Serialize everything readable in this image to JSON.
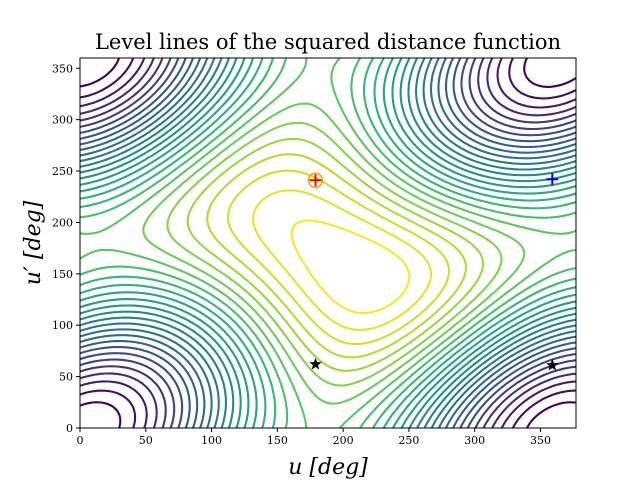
{
  "chart_data": {
    "type": "contour",
    "title": "Level lines of the squared distance function",
    "xlabel": "u [deg]",
    "ylabel": "u′ [deg]",
    "xlim": [
      0,
      377
    ],
    "ylim": [
      0,
      360
    ],
    "xticks": [
      0,
      50,
      100,
      150,
      200,
      250,
      300,
      350
    ],
    "yticks": [
      0,
      50,
      100,
      150,
      200,
      250,
      300,
      350
    ],
    "colormap": "viridis",
    "level_count": 28,
    "grid": false,
    "markers": [
      {
        "kind": "maximum",
        "symbol": "+",
        "color": "#ff0000",
        "x": 179,
        "y": 241,
        "circle_color": "#ffa500"
      },
      {
        "kind": "maximum",
        "symbol": "+",
        "color": "#0000ff",
        "x": 359,
        "y": 242
      },
      {
        "kind": "saddle",
        "symbol": "★",
        "color": "#000000",
        "x": 179,
        "y": 62
      },
      {
        "kind": "saddle",
        "symbol": "★",
        "color": "#000000",
        "x": 359,
        "y": 61
      }
    ]
  }
}
